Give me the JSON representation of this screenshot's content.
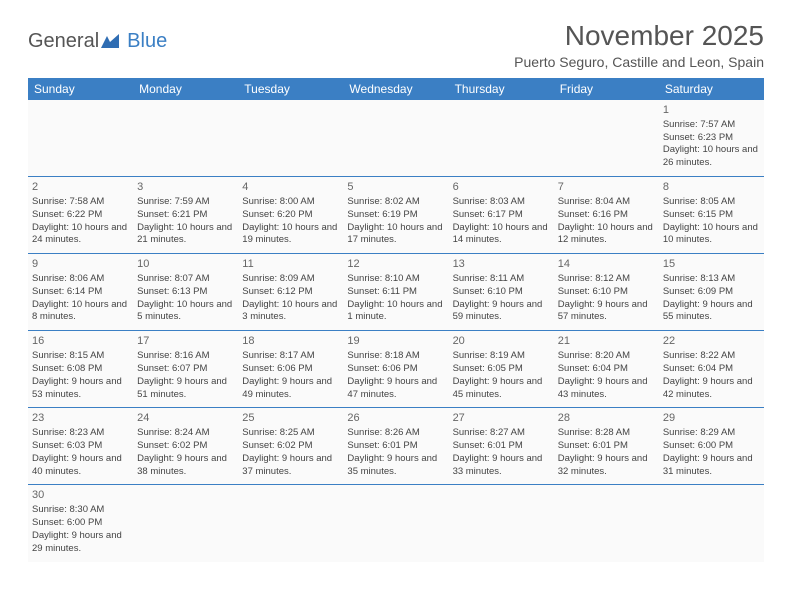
{
  "logo": {
    "part1": "General",
    "part2": "Blue"
  },
  "title": "November 2025",
  "location": "Puerto Seguro, Castille and Leon, Spain",
  "colors": {
    "header_bg": "#3b7fc4",
    "header_fg": "#ffffff",
    "border": "#3b7fc4",
    "cell_bg": "#fafafa",
    "text": "#444444",
    "title": "#555555"
  },
  "typography": {
    "title_fontsize": 28,
    "location_fontsize": 14,
    "dayheader_fontsize": 12,
    "cell_fontsize": 9.5
  },
  "day_headers": [
    "Sunday",
    "Monday",
    "Tuesday",
    "Wednesday",
    "Thursday",
    "Friday",
    "Saturday"
  ],
  "weeks": [
    [
      null,
      null,
      null,
      null,
      null,
      null,
      {
        "n": "1",
        "sr": "Sunrise: 7:57 AM",
        "ss": "Sunset: 6:23 PM",
        "dl": "Daylight: 10 hours and 26 minutes."
      }
    ],
    [
      {
        "n": "2",
        "sr": "Sunrise: 7:58 AM",
        "ss": "Sunset: 6:22 PM",
        "dl": "Daylight: 10 hours and 24 minutes."
      },
      {
        "n": "3",
        "sr": "Sunrise: 7:59 AM",
        "ss": "Sunset: 6:21 PM",
        "dl": "Daylight: 10 hours and 21 minutes."
      },
      {
        "n": "4",
        "sr": "Sunrise: 8:00 AM",
        "ss": "Sunset: 6:20 PM",
        "dl": "Daylight: 10 hours and 19 minutes."
      },
      {
        "n": "5",
        "sr": "Sunrise: 8:02 AM",
        "ss": "Sunset: 6:19 PM",
        "dl": "Daylight: 10 hours and 17 minutes."
      },
      {
        "n": "6",
        "sr": "Sunrise: 8:03 AM",
        "ss": "Sunset: 6:17 PM",
        "dl": "Daylight: 10 hours and 14 minutes."
      },
      {
        "n": "7",
        "sr": "Sunrise: 8:04 AM",
        "ss": "Sunset: 6:16 PM",
        "dl": "Daylight: 10 hours and 12 minutes."
      },
      {
        "n": "8",
        "sr": "Sunrise: 8:05 AM",
        "ss": "Sunset: 6:15 PM",
        "dl": "Daylight: 10 hours and 10 minutes."
      }
    ],
    [
      {
        "n": "9",
        "sr": "Sunrise: 8:06 AM",
        "ss": "Sunset: 6:14 PM",
        "dl": "Daylight: 10 hours and 8 minutes."
      },
      {
        "n": "10",
        "sr": "Sunrise: 8:07 AM",
        "ss": "Sunset: 6:13 PM",
        "dl": "Daylight: 10 hours and 5 minutes."
      },
      {
        "n": "11",
        "sr": "Sunrise: 8:09 AM",
        "ss": "Sunset: 6:12 PM",
        "dl": "Daylight: 10 hours and 3 minutes."
      },
      {
        "n": "12",
        "sr": "Sunrise: 8:10 AM",
        "ss": "Sunset: 6:11 PM",
        "dl": "Daylight: 10 hours and 1 minute."
      },
      {
        "n": "13",
        "sr": "Sunrise: 8:11 AM",
        "ss": "Sunset: 6:10 PM",
        "dl": "Daylight: 9 hours and 59 minutes."
      },
      {
        "n": "14",
        "sr": "Sunrise: 8:12 AM",
        "ss": "Sunset: 6:10 PM",
        "dl": "Daylight: 9 hours and 57 minutes."
      },
      {
        "n": "15",
        "sr": "Sunrise: 8:13 AM",
        "ss": "Sunset: 6:09 PM",
        "dl": "Daylight: 9 hours and 55 minutes."
      }
    ],
    [
      {
        "n": "16",
        "sr": "Sunrise: 8:15 AM",
        "ss": "Sunset: 6:08 PM",
        "dl": "Daylight: 9 hours and 53 minutes."
      },
      {
        "n": "17",
        "sr": "Sunrise: 8:16 AM",
        "ss": "Sunset: 6:07 PM",
        "dl": "Daylight: 9 hours and 51 minutes."
      },
      {
        "n": "18",
        "sr": "Sunrise: 8:17 AM",
        "ss": "Sunset: 6:06 PM",
        "dl": "Daylight: 9 hours and 49 minutes."
      },
      {
        "n": "19",
        "sr": "Sunrise: 8:18 AM",
        "ss": "Sunset: 6:06 PM",
        "dl": "Daylight: 9 hours and 47 minutes."
      },
      {
        "n": "20",
        "sr": "Sunrise: 8:19 AM",
        "ss": "Sunset: 6:05 PM",
        "dl": "Daylight: 9 hours and 45 minutes."
      },
      {
        "n": "21",
        "sr": "Sunrise: 8:20 AM",
        "ss": "Sunset: 6:04 PM",
        "dl": "Daylight: 9 hours and 43 minutes."
      },
      {
        "n": "22",
        "sr": "Sunrise: 8:22 AM",
        "ss": "Sunset: 6:04 PM",
        "dl": "Daylight: 9 hours and 42 minutes."
      }
    ],
    [
      {
        "n": "23",
        "sr": "Sunrise: 8:23 AM",
        "ss": "Sunset: 6:03 PM",
        "dl": "Daylight: 9 hours and 40 minutes."
      },
      {
        "n": "24",
        "sr": "Sunrise: 8:24 AM",
        "ss": "Sunset: 6:02 PM",
        "dl": "Daylight: 9 hours and 38 minutes."
      },
      {
        "n": "25",
        "sr": "Sunrise: 8:25 AM",
        "ss": "Sunset: 6:02 PM",
        "dl": "Daylight: 9 hours and 37 minutes."
      },
      {
        "n": "26",
        "sr": "Sunrise: 8:26 AM",
        "ss": "Sunset: 6:01 PM",
        "dl": "Daylight: 9 hours and 35 minutes."
      },
      {
        "n": "27",
        "sr": "Sunrise: 8:27 AM",
        "ss": "Sunset: 6:01 PM",
        "dl": "Daylight: 9 hours and 33 minutes."
      },
      {
        "n": "28",
        "sr": "Sunrise: 8:28 AM",
        "ss": "Sunset: 6:01 PM",
        "dl": "Daylight: 9 hours and 32 minutes."
      },
      {
        "n": "29",
        "sr": "Sunrise: 8:29 AM",
        "ss": "Sunset: 6:00 PM",
        "dl": "Daylight: 9 hours and 31 minutes."
      }
    ],
    [
      {
        "n": "30",
        "sr": "Sunrise: 8:30 AM",
        "ss": "Sunset: 6:00 PM",
        "dl": "Daylight: 9 hours and 29 minutes."
      },
      null,
      null,
      null,
      null,
      null,
      null
    ]
  ]
}
